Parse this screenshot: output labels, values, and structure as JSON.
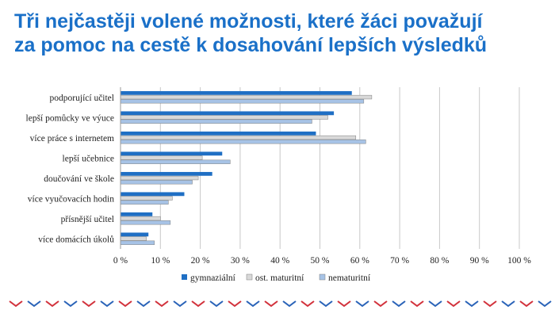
{
  "title_line1": "Tři nejčastěji volené možnosti, které žáci považují",
  "title_line2": "za pomoc na cestě k dosahování lepších výsledků",
  "colors": {
    "title": "#1a70c8",
    "gymnazialni": "#1f6fc4",
    "ost_maturitni": "#d9d9d9",
    "nematuritni": "#a7c3e6",
    "grid": "#c8c8c8",
    "border_red": "#d2323c",
    "border_blue": "#2a63b8"
  },
  "chart_data": {
    "type": "bar",
    "orientation": "horizontal",
    "categories": [
      "podporující učitel",
      "lepší pomůcky ve výuce",
      "více práce s internetem",
      "lepší učebnice",
      "doučování ve škole",
      "více vyučovacích hodin",
      "přísnější učitel",
      "více domácích úkolů"
    ],
    "series": [
      {
        "name": "gymnaziální",
        "values": [
          58,
          53.5,
          49,
          25.5,
          23,
          16,
          8,
          7
        ]
      },
      {
        "name": "ost. maturitní",
        "values": [
          63,
          52,
          59,
          20.5,
          19.5,
          13,
          10,
          6.5
        ]
      },
      {
        "name": "nematuritní",
        "values": [
          61,
          48,
          61.5,
          27.5,
          18,
          12,
          12.5,
          8.5
        ]
      }
    ],
    "xlim": [
      0,
      100
    ],
    "xticks": [
      "0 %",
      "10 %",
      "20 %",
      "30 %",
      "40 %",
      "50 %",
      "60 %",
      "70 %",
      "80 %",
      "90 %",
      "100 %"
    ],
    "grid": true,
    "legend_position": "bottom"
  }
}
